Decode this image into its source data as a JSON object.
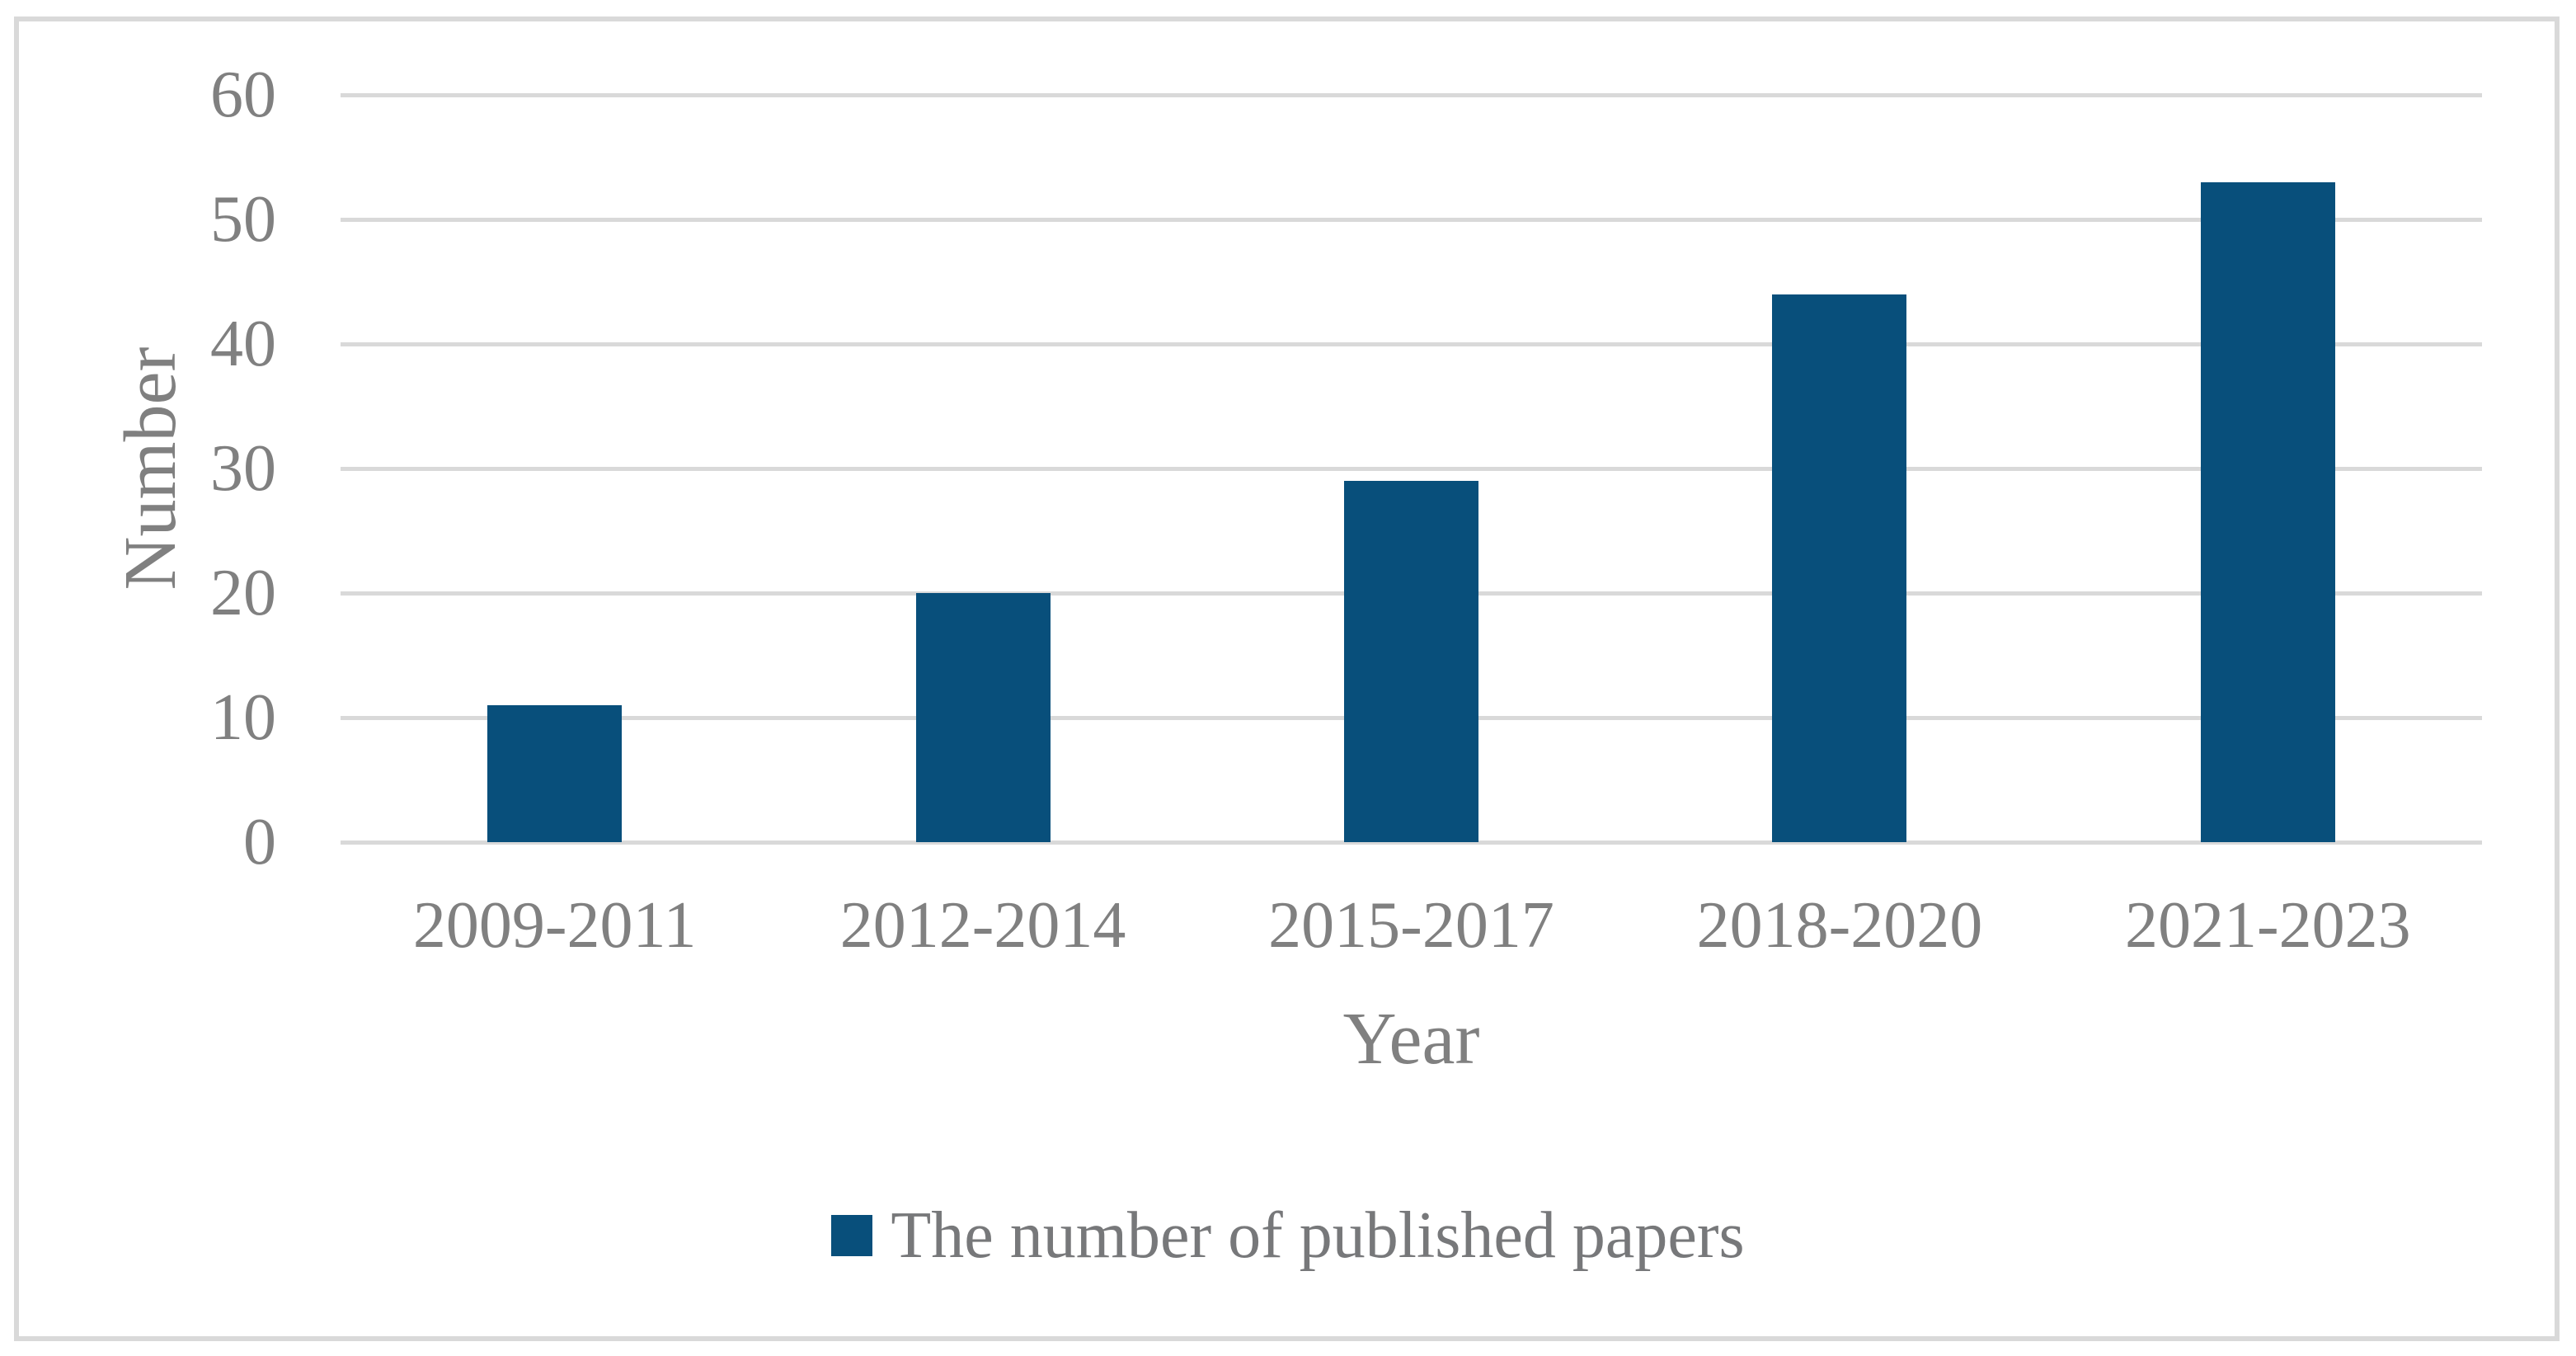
{
  "chart_data": {
    "type": "bar",
    "title": "",
    "categories": [
      "2009-2011",
      "2012-2014",
      "2015-2017",
      "2018-2020",
      "2021-2023"
    ],
    "series": [
      {
        "name": "The number of published papers",
        "values": [
          11,
          20,
          29,
          44,
          53
        ]
      }
    ],
    "xlabel": "Year",
    "ylabel": "Number",
    "ylim": [
      0,
      60
    ],
    "yticks": [
      0,
      10,
      20,
      30,
      40,
      50,
      60
    ],
    "grid": "horizontal",
    "legend_position": "bottom-center",
    "colors": {
      "bar": "#084f7b",
      "gridline": "#d9d9d9",
      "figure_border": "#d9d9d9",
      "axis_text": "#808080",
      "legend_text": "#77787a",
      "background": "#ffffff"
    }
  },
  "axes": {
    "x_title": "Year",
    "y_title": "Number",
    "y_tick_labels": [
      "0",
      "10",
      "20",
      "30",
      "40",
      "50",
      "60"
    ],
    "x_tick_labels": [
      "2009-2011",
      "2012-2014",
      "2015-2017",
      "2018-2020",
      "2021-2023"
    ]
  },
  "legend": {
    "label": "The number of published papers",
    "marker_color": "#084f7b"
  }
}
